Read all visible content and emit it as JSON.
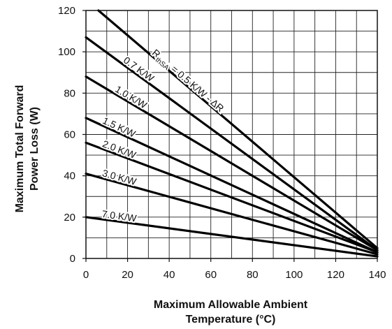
{
  "chart_data": {
    "type": "line",
    "title": "",
    "xlabel_line1": "Maximum Allowable Ambient",
    "xlabel_line2": "Temperature (°C)",
    "ylabel_line1": "Maximum Total Forward",
    "ylabel_line2": "Power Loss (W)",
    "xlim": [
      0,
      140
    ],
    "ylim": [
      0,
      120
    ],
    "xticks": [
      0,
      20,
      40,
      60,
      80,
      100,
      120,
      140
    ],
    "yticks": [
      0,
      20,
      40,
      60,
      80,
      100,
      120
    ],
    "grid": true,
    "series": [
      {
        "name": "RthSA = 0.5 K/W - ΔR",
        "label_main": "R",
        "label_sub": "thSA",
        "label_rest": " = 0.5 K/W - ΔR",
        "x": [
          6,
          140
        ],
        "y": [
          120,
          5
        ]
      },
      {
        "name": "0.7 K/W",
        "label_main": "0.7 K/W",
        "x": [
          0,
          140
        ],
        "y": [
          107,
          4
        ]
      },
      {
        "name": "1.0 K/W",
        "label_main": "1.0 K/W",
        "x": [
          0,
          140
        ],
        "y": [
          88,
          4
        ]
      },
      {
        "name": "1.5 K/W",
        "label_main": "1.5 K/W",
        "x": [
          0,
          140
        ],
        "y": [
          68,
          3
        ]
      },
      {
        "name": "2.0 K/W",
        "label_main": "2.0 K/W",
        "x": [
          0,
          140
        ],
        "y": [
          56,
          3
        ]
      },
      {
        "name": "3.0 K/W",
        "label_main": "3.0 K/W",
        "x": [
          0,
          140
        ],
        "y": [
          41,
          2
        ]
      },
      {
        "name": "7.0 K/W",
        "label_main": "7.0 K/W",
        "x": [
          0,
          140
        ],
        "y": [
          20,
          1
        ]
      }
    ]
  }
}
